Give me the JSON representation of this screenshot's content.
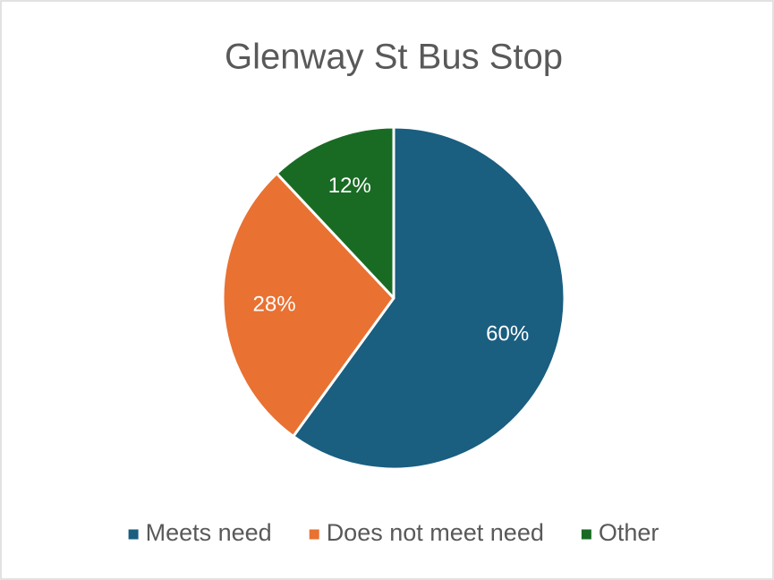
{
  "chart_data": {
    "type": "pie",
    "title": "Glenway St Bus Stop",
    "categories": [
      "Meets need",
      "Does not meet need",
      "Other"
    ],
    "values": [
      60,
      28,
      12
    ],
    "value_labels": [
      "60%",
      "28%",
      "12%"
    ],
    "colors": [
      "#1a5e80",
      "#e97132",
      "#196b24"
    ],
    "legend": "bottom"
  }
}
